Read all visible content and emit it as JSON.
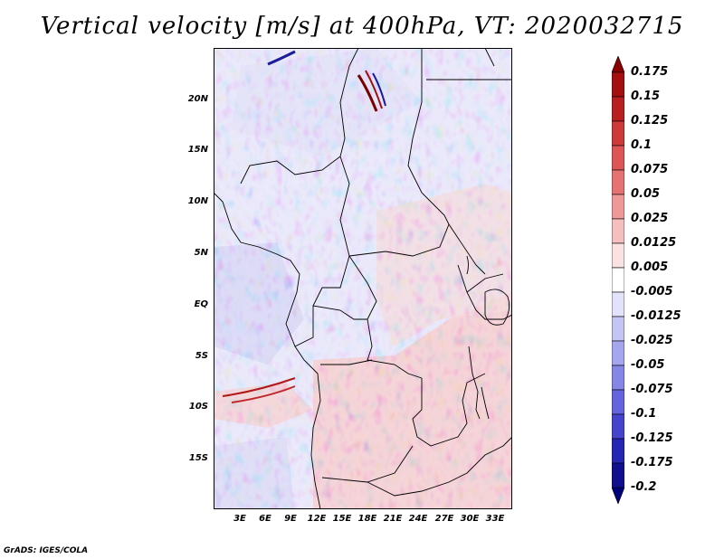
{
  "title": "Vertical velocity [m/s] at 400hPa, VT: 2020032715",
  "credit": "GrADS: IGES/COLA",
  "map": {
    "variable": "Vertical velocity",
    "units": "m/s",
    "level": "400hPa",
    "valid_time": "2020032715",
    "lat_labels": [
      "20N",
      "15N",
      "10N",
      "5N",
      "EQ",
      "5S",
      "10S",
      "15S"
    ],
    "lon_labels": [
      "3E",
      "6E",
      "9E",
      "12E",
      "15E",
      "18E",
      "21E",
      "24E",
      "27E",
      "30E",
      "33E"
    ]
  },
  "colorbar": {
    "levels": [
      "0.175",
      "0.15",
      "0.125",
      "0.1",
      "0.075",
      "0.05",
      "0.025",
      "0.0125",
      "0.005",
      "-0.005",
      "-0.0125",
      "-0.025",
      "-0.05",
      "-0.075",
      "-0.1",
      "-0.125",
      "-0.175",
      "-0.2"
    ],
    "colors": [
      "#8b0000",
      "#a41010",
      "#b82020",
      "#cd3a3a",
      "#dc5656",
      "#e67373",
      "#ef9898",
      "#f6bfbf",
      "#fbe2e2",
      "#ffffff",
      "#e2e2fb",
      "#c4c4f5",
      "#a6a6ef",
      "#8686e6",
      "#6464dc",
      "#4444cc",
      "#2626b4",
      "#10108f",
      "#00007a"
    ]
  }
}
